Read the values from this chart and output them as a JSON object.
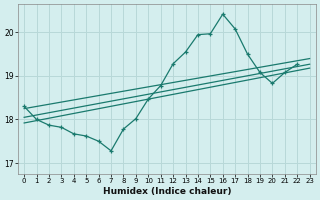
{
  "xlabel": "Humidex (Indice chaleur)",
  "bg_color": "#d4eeee",
  "grid_color": "#b8d8d8",
  "line_color": "#1a7a6e",
  "xlim": [
    -0.5,
    23.5
  ],
  "ylim": [
    16.75,
    20.65
  ],
  "xticks": [
    0,
    1,
    2,
    3,
    4,
    5,
    6,
    7,
    8,
    9,
    10,
    11,
    12,
    13,
    14,
    15,
    16,
    17,
    18,
    19,
    20,
    21,
    22,
    23
  ],
  "yticks": [
    17,
    18,
    19,
    20
  ],
  "jagged_x": [
    0,
    1,
    2,
    3,
    4,
    5,
    6,
    7,
    8,
    9,
    10,
    11,
    12,
    13,
    14,
    15,
    16,
    17,
    18,
    19,
    20,
    21,
    22,
    23
  ],
  "jagged_y": [
    18.3,
    18.0,
    17.87,
    17.82,
    17.67,
    17.62,
    17.5,
    17.28,
    17.78,
    18.02,
    18.47,
    18.78,
    19.28,
    19.55,
    19.95,
    19.97,
    20.42,
    20.08,
    19.5,
    19.08,
    18.83,
    19.08,
    19.27,
    null
  ],
  "trend1_x": [
    0,
    23
  ],
  "trend1_y": [
    18.25,
    19.4
  ],
  "trend2_x": [
    0,
    23
  ],
  "trend2_y": [
    18.05,
    19.27
  ],
  "trend3_x": [
    0,
    23
  ],
  "trend3_y": [
    17.92,
    19.18
  ]
}
